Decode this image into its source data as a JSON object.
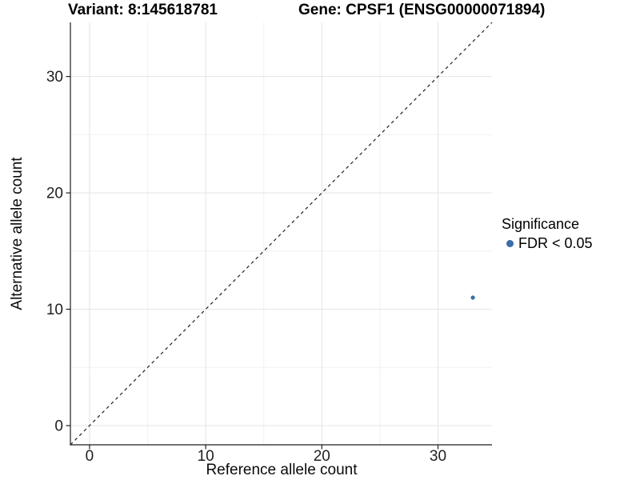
{
  "figure": {
    "title_left": "Variant: 8:145618781",
    "title_right": "Gene: CPSF1 (ENSG00000071894)"
  },
  "chart_data": {
    "type": "scatter",
    "title": "",
    "xlabel": "Reference allele count",
    "ylabel": "Alternative allele count",
    "xlim": [
      -1.65,
      34.65
    ],
    "ylim": [
      -1.65,
      34.65
    ],
    "x_ticks": [
      0,
      10,
      20,
      30
    ],
    "y_ticks": [
      0,
      10,
      20,
      30
    ],
    "x_minor_ticks": [
      5,
      15,
      25
    ],
    "y_minor_ticks": [
      5,
      15,
      25
    ],
    "grid": true,
    "series": [
      {
        "name": "FDR < 0.05",
        "marker": "circle",
        "color": "#3A6DA9",
        "points": [
          [
            33,
            11
          ]
        ]
      }
    ],
    "ref_line": {
      "kind": "identity y=x",
      "from": [
        -1.65,
        -1.65
      ],
      "to": [
        34.65,
        34.65
      ],
      "style": "dashed",
      "color": "#202020"
    },
    "legend": {
      "title": "Significance",
      "position": "right",
      "items": [
        {
          "label": "FDR < 0.05",
          "marker": "circle",
          "color": "#3A6DA9"
        }
      ]
    },
    "colors": {
      "background": "#ffffff",
      "grid_major": "#e4e4e4",
      "grid_minor": "#f1f1f1",
      "axis": "#1f1f1f",
      "text": "#1f1f1f"
    }
  }
}
